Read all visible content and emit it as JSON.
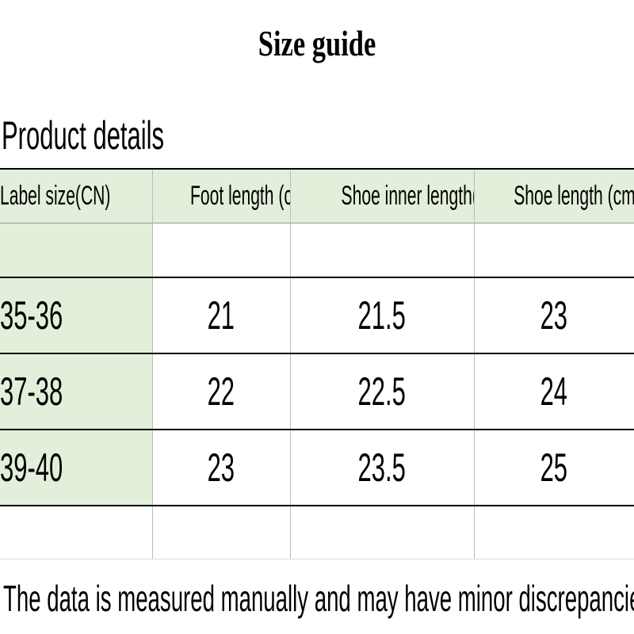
{
  "header": {
    "title": "Size guide",
    "subtitle": "Product details"
  },
  "table": {
    "columns": [
      "Label size(CN)",
      "Foot length (cm)",
      "Shoe inner length(cm)",
      "Shoe length (cm)"
    ],
    "rows": [
      [
        "35-36",
        "21",
        "21.5",
        "23"
      ],
      [
        "37-38",
        "22",
        "22.5",
        "24"
      ],
      [
        "39-40",
        "23",
        "23.5",
        "25"
      ]
    ]
  },
  "footer": {
    "note": "The data is measured manually and may have minor discrepancies."
  }
}
